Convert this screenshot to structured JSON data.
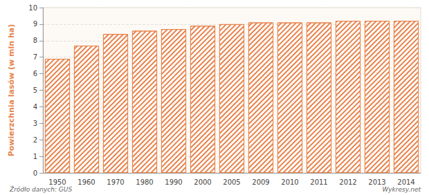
{
  "chart_data": {
    "type": "bar",
    "y_label": "Powierzchnia lasów (w mln ha)",
    "categories": [
      "1950",
      "1960",
      "1970",
      "1980",
      "1990",
      "2000",
      "2005",
      "2009",
      "2010",
      "2011",
      "2012",
      "2013",
      "2014"
    ],
    "values": [
      6.9,
      7.7,
      8.4,
      8.6,
      8.7,
      8.9,
      9.0,
      9.1,
      9.1,
      9.1,
      9.2,
      9.2,
      9.2
    ],
    "color": "#e8824a",
    "ylim": [
      0,
      10
    ],
    "yticks": [
      0,
      1,
      2,
      3,
      4,
      5,
      6,
      7,
      8,
      9,
      10
    ],
    "grid": true,
    "annotations": [
      "Źródło danych: GUS",
      "Wykresy.net"
    ]
  }
}
